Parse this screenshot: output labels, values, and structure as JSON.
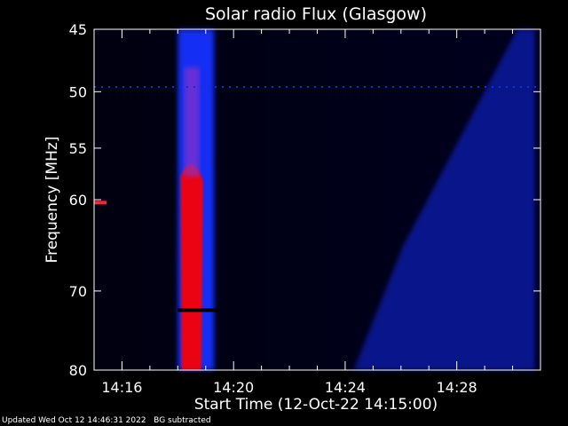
{
  "chart_data": {
    "type": "heatmap",
    "title": "Solar radio Flux (Glasgow)",
    "xlabel": "Start Time (12-Oct-22 14:15:00)",
    "ylabel": "Frequency [MHz]",
    "x_unit": "minutes after 14:00",
    "xlim": [
      15.0,
      31.0
    ],
    "ylim": [
      45,
      80
    ],
    "y_scale": "log",
    "y_inverted": true,
    "x_ticks": [
      {
        "value": 16,
        "label": "14:16"
      },
      {
        "value": 20,
        "label": "14:20"
      },
      {
        "value": 24,
        "label": "14:24"
      },
      {
        "value": 28,
        "label": "14:28"
      }
    ],
    "y_ticks": [
      {
        "value": 45,
        "label": "45"
      },
      {
        "value": 50,
        "label": "50"
      },
      {
        "value": 55,
        "label": "55"
      },
      {
        "value": 60,
        "label": "60"
      },
      {
        "value": 70,
        "label": "70"
      },
      {
        "value": 80,
        "label": "80"
      }
    ],
    "colormap": [
      "#000000",
      "#0010ff",
      "#7a2fbf",
      "#ff0000"
    ],
    "features": [
      {
        "kind": "burst",
        "t_start": 18.0,
        "t_end": 19.3,
        "f_min": 45,
        "f_max": 80,
        "color": "#1530ff"
      },
      {
        "kind": "burst-core",
        "t_start": 18.1,
        "t_end": 18.9,
        "f_min": 56,
        "f_max": 80,
        "color": "#ff0000"
      },
      {
        "kind": "drifting-emission",
        "t_start": 24.3,
        "t_end": 30.8,
        "f_min": 45,
        "f_max": 80,
        "color": "#0c1ab0"
      },
      {
        "kind": "rfi-line",
        "t_start": 15.0,
        "t_end": 31.0,
        "f": 49.6,
        "color": "#1030d0"
      },
      {
        "kind": "rfi-line",
        "t_start": 18.0,
        "t_end": 19.5,
        "f": 72.3,
        "color": "#000000"
      },
      {
        "kind": "rfi-blip",
        "t_start": 15.0,
        "t_end": 15.45,
        "f": 60.3,
        "color": "#ff2040"
      }
    ]
  },
  "footer": {
    "updated": "Updated Wed Oct 12 14:46:31 2022",
    "note": "BG subtracted"
  }
}
